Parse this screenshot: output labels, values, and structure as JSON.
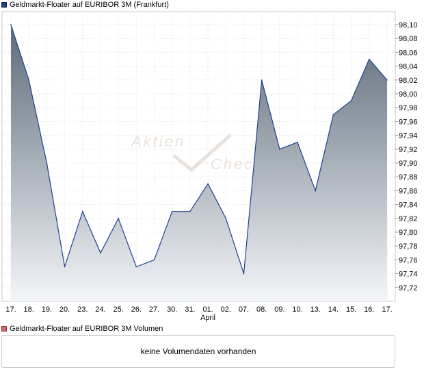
{
  "legend": {
    "price_label": "Geldmarkt-Floater auf EURIBOR 3M (Frankfurt)",
    "price_color": "#1f3f8f",
    "volume_label": "Geldmarkt-Floater auf EURIBOR 3M Volumen",
    "volume_color": "#d46a6a"
  },
  "watermark": {
    "line1": "Aktien",
    "line2": "Check"
  },
  "volume_panel": {
    "message": "keine Volumendaten vorhanden"
  },
  "chart_data": {
    "type": "area",
    "categories": [
      "17.",
      "18.",
      "19.",
      "20.",
      "23.",
      "24.",
      "25.",
      "26.",
      "27.",
      "30.",
      "31.",
      "01.",
      "02.",
      "07.",
      "08.",
      "09.",
      "10.",
      "13.",
      "14.",
      "15.",
      "16.",
      "17."
    ],
    "month_labels": [
      {
        "index": 11,
        "label": "April"
      }
    ],
    "series": [
      {
        "values": [
          98.1,
          98.02,
          97.9,
          97.75,
          97.83,
          97.77,
          97.82,
          97.75,
          97.76,
          97.83,
          97.83,
          97.87,
          97.82,
          97.74,
          98.02,
          97.92,
          97.93,
          97.86,
          97.97,
          97.99,
          98.05,
          98.02
        ]
      }
    ],
    "yticks": [
      "98,10",
      "98,08",
      "98,06",
      "98,04",
      "98,02",
      "98,00",
      "97,98",
      "97,96",
      "97,94",
      "97,92",
      "97,90",
      "97,88",
      "97,86",
      "97,84",
      "97,82",
      "97,80",
      "97,78",
      "97,76",
      "97,74",
      "97,72"
    ],
    "ylim": [
      97.71,
      98.11
    ],
    "grid": true,
    "line_color": "#1f3f8f",
    "fill_top_color": "#5d6b79",
    "fill_bottom_color": "#f4f6f9"
  }
}
